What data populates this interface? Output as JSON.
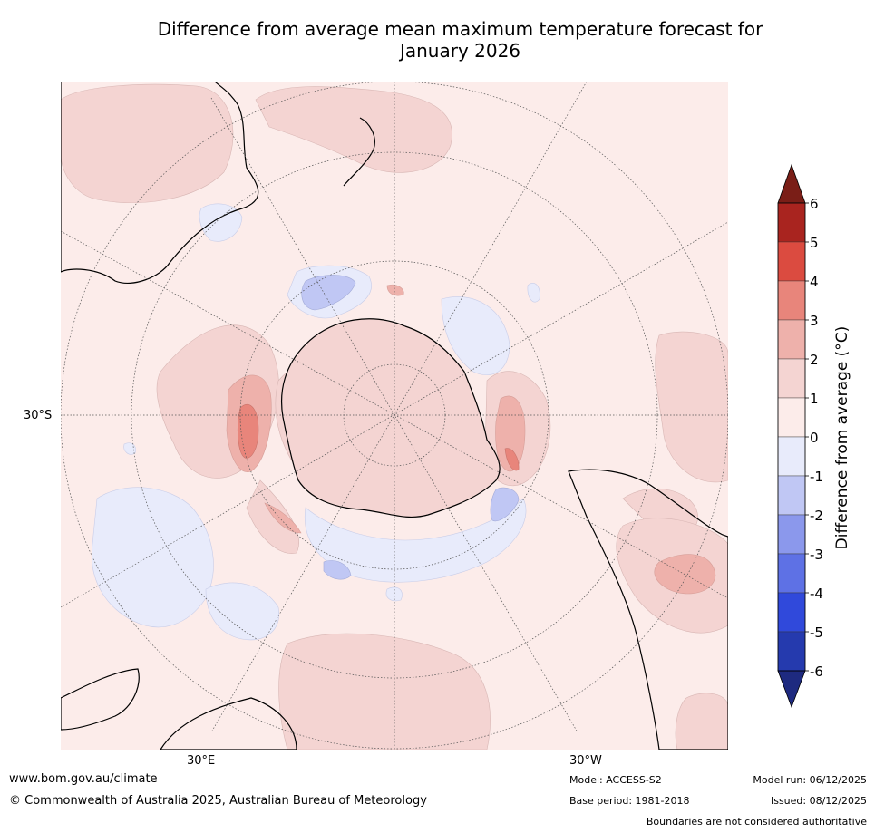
{
  "title_line1": "Difference from average mean maximum temperature forecast for",
  "title_line2": "January 2026",
  "map": {
    "projection": "south-polar stereographic",
    "lat_label": "30°S",
    "lon_labels": [
      "30°E",
      "30°W"
    ]
  },
  "colorbar": {
    "label": "Difference from average (°C)",
    "ticks": [
      "6",
      "5",
      "4",
      "3",
      "2",
      "1",
      "0",
      "-1",
      "-2",
      "-3",
      "-4",
      "-5",
      "-6"
    ],
    "colors_top_to_bottom": [
      "#a9241f",
      "#db4b40",
      "#e8857b",
      "#eeb1ab",
      "#f4d4d2",
      "#fcecea",
      "#e8ebfb",
      "#c0c7f4",
      "#8b98ec",
      "#5e71e5",
      "#3049db",
      "#253aae"
    ],
    "extend_max_color": "#7a1e17",
    "extend_min_color": "#1e2a80"
  },
  "footer": {
    "website": "www.bom.gov.au/climate",
    "copyright": "© Commonwealth of Australia 2025, Australian Bureau of Meteorology",
    "model": "Model: ACCESS-S2",
    "base_period": "Base period: 1981-2018",
    "model_run": "Model run: 06/12/2025",
    "issued": "Issued: 08/12/2025",
    "disclaimer": "Boundaries are not considered authoritative"
  },
  "colors": {
    "background_anomaly": "#fcecea",
    "warm_anomaly_1_2": "#f4d4d2",
    "warm_anomaly_2_3": "#eeb1ab",
    "warm_anomaly_3_4": "#e8857b",
    "cool_anomaly_0_-1": "#e8ebfb",
    "cool_anomaly_-1_-2": "#c0c7f4"
  }
}
